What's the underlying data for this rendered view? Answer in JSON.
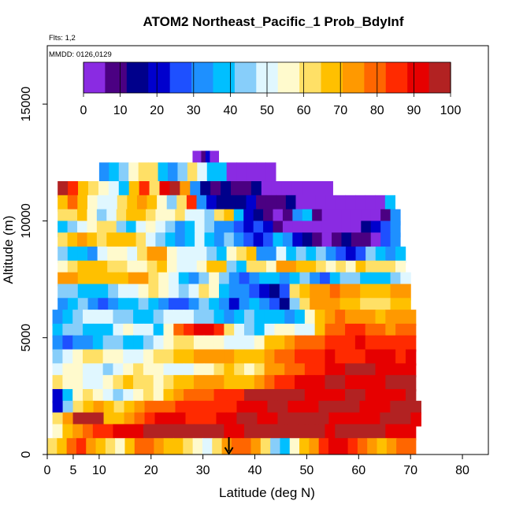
{
  "chart_data": {
    "type": "heatmap",
    "title": "ATOM2 Northeast_Pacific_1 Prob_BdyInf",
    "flights_label": "Flts: 1,2",
    "dates_label": "MMDD: 0126,0129",
    "xlabel": "Latitude (deg N)",
    "ylabel": "Altitude (m)",
    "xlim": [
      0,
      85
    ],
    "ylim": [
      0,
      17500
    ],
    "x_ticks": [
      0,
      5,
      10,
      20,
      30,
      40,
      50,
      60,
      70,
      80
    ],
    "y_ticks": [
      0,
      5000,
      10000,
      15000
    ],
    "colorbar": {
      "range": [
        0,
        100
      ],
      "ticks": [
        0,
        10,
        20,
        30,
        40,
        50,
        60,
        70,
        80,
        90,
        100
      ],
      "colors": [
        "#8a2be2",
        "#4b0082",
        "#00008b",
        "#0000cd",
        "#1e50ff",
        "#1e90ff",
        "#00bfff",
        "#87cefa",
        "#e0f7ff",
        "#fffacd",
        "#ffe066",
        "#ffc000",
        "#ff9900",
        "#ff6600",
        "#ff2a00",
        "#e60000",
        "#b22222"
      ]
    },
    "arrow_latitude": 35,
    "rows": [
      {
        "alt_min": 12400,
        "alt_max": 13000,
        "lat_min": 28,
        "lat_max": 33,
        "values": [
          2,
          2,
          10,
          18,
          5,
          3
        ]
      },
      {
        "alt_min": 11500,
        "alt_max": 12500,
        "lat_min": 10,
        "lat_max": 44,
        "values": [
          35,
          38,
          42,
          55,
          60,
          62,
          38,
          30,
          45,
          60,
          52,
          40,
          38,
          3,
          2,
          2,
          2,
          2
        ]
      },
      {
        "alt_min": 11000,
        "alt_max": 11700,
        "lat_min": 2,
        "lat_max": 55,
        "values": [
          95,
          85,
          70,
          60,
          55,
          48,
          40,
          70,
          85,
          60,
          90,
          95,
          75,
          30,
          15,
          10,
          12,
          10,
          8,
          15,
          5,
          3,
          2,
          2,
          2,
          2,
          2
        ]
      },
      {
        "alt_min": 10400,
        "alt_max": 11100,
        "lat_min": 2,
        "lat_max": 67,
        "values": [
          70,
          78,
          65,
          55,
          48,
          50,
          62,
          70,
          75,
          65,
          58,
          45,
          60,
          88,
          30,
          20,
          15,
          12,
          15,
          18,
          10,
          8,
          6,
          12,
          5,
          2,
          2,
          3,
          4,
          2,
          2,
          2,
          3,
          40
        ]
      },
      {
        "alt_min": 9800,
        "alt_max": 10500,
        "lat_min": 2,
        "lat_max": 68,
        "values": [
          60,
          62,
          70,
          58,
          45,
          52,
          60,
          65,
          70,
          60,
          55,
          58,
          62,
          50,
          48,
          45,
          60,
          70,
          40,
          20,
          15,
          8,
          5,
          10,
          30,
          40,
          8,
          2,
          2,
          2,
          2,
          5,
          3,
          8,
          30
        ]
      },
      {
        "alt_min": 9300,
        "alt_max": 10000,
        "lat_min": 2,
        "lat_max": 68,
        "values": [
          38,
          42,
          48,
          55,
          62,
          60,
          45,
          40,
          50,
          55,
          48,
          42,
          35,
          40,
          50,
          45,
          35,
          30,
          28,
          20,
          25,
          18,
          10,
          5,
          3,
          2,
          2,
          2,
          2,
          2,
          3,
          12,
          20,
          25,
          30
        ]
      },
      {
        "alt_min": 8800,
        "alt_max": 9500,
        "lat_min": 2,
        "lat_max": 68,
        "values": [
          62,
          70,
          72,
          68,
          64,
          66,
          70,
          68,
          60,
          48,
          42,
          38,
          35,
          40,
          50,
          38,
          30,
          42,
          35,
          25,
          20,
          28,
          40,
          35,
          22,
          12,
          8,
          5,
          8,
          15,
          10,
          6,
          5,
          25,
          30
        ]
      },
      {
        "alt_min": 8200,
        "alt_max": 8900,
        "lat_min": 2,
        "lat_max": 69,
        "values": [
          42,
          40,
          38,
          35,
          48,
          58,
          55,
          52,
          60,
          75,
          72,
          55,
          50,
          48,
          52,
          45,
          40,
          55,
          60,
          68,
          35,
          30,
          50,
          40,
          45,
          38,
          42,
          32,
          28,
          20,
          25,
          45,
          38,
          30,
          40
        ]
      },
      {
        "alt_min": 7700,
        "alt_max": 8300,
        "lat_min": 2,
        "lat_max": 69,
        "values": [
          58,
          62,
          66,
          70,
          68,
          64,
          60,
          58,
          55,
          60,
          65,
          58,
          50,
          48,
          55,
          70,
          68,
          45,
          40,
          62,
          60,
          58,
          72,
          75,
          70,
          66,
          62,
          55,
          60,
          58,
          65,
          64,
          62,
          60,
          55
        ]
      },
      {
        "alt_min": 7200,
        "alt_max": 7800,
        "lat_min": 2,
        "lat_max": 70,
        "values": [
          75,
          72,
          70,
          68,
          66,
          68,
          70,
          72,
          74,
          62,
          58,
          48,
          40,
          35,
          45,
          55,
          42,
          30,
          25,
          35,
          40,
          36,
          32,
          38,
          45,
          30,
          25,
          40,
          45,
          42,
          36,
          38,
          40,
          45,
          50
        ]
      },
      {
        "alt_min": 6600,
        "alt_max": 7300,
        "lat_min": 2,
        "lat_max": 70,
        "values": [
          45,
          42,
          40,
          38,
          36,
          42,
          48,
          52,
          58,
          62,
          56,
          50,
          45,
          52,
          60,
          55,
          40,
          35,
          30,
          25,
          20,
          15,
          25,
          60,
          70,
          74,
          76,
          78,
          74,
          72,
          70,
          68,
          70,
          72,
          75
        ]
      },
      {
        "alt_min": 6100,
        "alt_max": 6700,
        "lat_min": 2,
        "lat_max": 70,
        "values": [
          35,
          38,
          42,
          30,
          28,
          32,
          36,
          40,
          45,
          40,
          35,
          28,
          25,
          30,
          42,
          38,
          30,
          22,
          35,
          40,
          30,
          28,
          15,
          45,
          60,
          72,
          75,
          73,
          70,
          66,
          62,
          60,
          64,
          66,
          68
        ]
      },
      {
        "alt_min": 5500,
        "alt_max": 6200,
        "lat_min": 1,
        "lat_max": 71,
        "values": [
          35,
          40,
          45,
          50,
          52,
          48,
          45,
          42,
          40,
          38,
          44,
          48,
          52,
          50,
          46,
          42,
          38,
          35,
          40,
          44,
          40,
          38,
          36,
          34,
          40,
          55,
          70,
          75,
          78,
          76,
          74,
          72,
          70,
          72,
          74,
          75
        ]
      },
      {
        "alt_min": 5000,
        "alt_max": 5600,
        "lat_min": 1,
        "lat_max": 71,
        "values": [
          40,
          45,
          42,
          38,
          36,
          40,
          48,
          55,
          52,
          48,
          40,
          55,
          80,
          88,
          92,
          90,
          86,
          60,
          50,
          45,
          40,
          50,
          58,
          55,
          52,
          48,
          68,
          80,
          82,
          85,
          84,
          80,
          78,
          76,
          78,
          80
        ]
      },
      {
        "alt_min": 4400,
        "alt_max": 5100,
        "lat_min": 1,
        "lat_max": 71,
        "values": [
          30,
          28,
          32,
          35,
          38,
          42,
          45,
          40,
          38,
          42,
          48,
          55,
          62,
          60,
          58,
          56,
          54,
          52,
          50,
          48,
          58,
          66,
          70,
          75,
          78,
          80,
          82,
          84,
          86,
          88,
          90,
          88,
          86,
          84,
          85,
          86
        ]
      },
      {
        "alt_min": 3800,
        "alt_max": 4500,
        "lat_min": 1,
        "lat_max": 71,
        "values": [
          45,
          50,
          55,
          60,
          62,
          58,
          55,
          52,
          50,
          55,
          60,
          64,
          68,
          70,
          72,
          74,
          76,
          72,
          68,
          66,
          70,
          74,
          78,
          82,
          84,
          86,
          88,
          90,
          88,
          86,
          88,
          90,
          92,
          90,
          88,
          90
        ]
      },
      {
        "alt_min": 3300,
        "alt_max": 3900,
        "lat_min": 1,
        "lat_max": 71,
        "values": [
          50,
          55,
          58,
          52,
          48,
          46,
          50,
          55,
          60,
          58,
          55,
          50,
          48,
          52,
          56,
          58,
          62,
          66,
          60,
          58,
          62,
          72,
          76,
          80,
          82,
          85,
          88,
          92,
          94,
          95,
          96,
          95,
          94,
          92,
          90,
          92
        ]
      },
      {
        "alt_min": 2700,
        "alt_max": 3400,
        "lat_min": 1,
        "lat_max": 71,
        "values": [
          60,
          58,
          55,
          50,
          52,
          56,
          62,
          66,
          64,
          60,
          58,
          62,
          66,
          70,
          74,
          76,
          72,
          68,
          66,
          70,
          74,
          80,
          84,
          88,
          90,
          92,
          94,
          96,
          95,
          94,
          92,
          93,
          94,
          95,
          96,
          95
        ]
      },
      {
        "alt_min": 2200,
        "alt_max": 2800,
        "lat_min": 1,
        "lat_max": 71,
        "values": [
          18,
          40,
          55,
          62,
          58,
          48,
          44,
          50,
          56,
          60,
          58,
          66,
          72,
          78,
          80,
          82,
          84,
          86,
          88,
          96,
          98,
          98,
          97,
          96,
          95,
          94,
          93,
          92,
          94,
          96,
          95,
          94,
          93,
          92,
          94,
          95
        ]
      },
      {
        "alt_min": 1700,
        "alt_max": 2300,
        "lat_min": 1,
        "lat_max": 72,
        "values": [
          20,
          45,
          60,
          70,
          72,
          66,
          60,
          68,
          74,
          78,
          80,
          82,
          84,
          86,
          85,
          84,
          86,
          88,
          90,
          92,
          94,
          96,
          95,
          94,
          93,
          94,
          96,
          97,
          96,
          95,
          94,
          93,
          94,
          95,
          96,
          95
        ]
      },
      {
        "alt_min": 1200,
        "alt_max": 1800,
        "lat_min": 1,
        "lat_max": 72,
        "values": [
          60,
          75,
          96,
          98,
          97,
          70,
          65,
          72,
          80,
          86,
          90,
          92,
          90,
          88,
          86,
          88,
          92,
          94,
          96,
          95,
          94,
          92,
          95,
          96,
          97,
          96,
          95,
          94,
          92,
          90,
          92,
          94,
          95,
          96,
          95,
          94
        ]
      },
      {
        "alt_min": 600,
        "alt_max": 1300,
        "lat_min": 1,
        "lat_max": 71,
        "values": [
          55,
          65,
          75,
          80,
          85,
          88,
          90,
          92,
          94,
          95,
          96,
          97,
          98,
          98,
          97,
          96,
          95,
          94,
          93,
          95,
          96,
          97,
          98,
          98,
          97,
          96,
          95,
          94,
          95,
          96,
          97,
          96,
          95,
          94,
          93,
          94
        ]
      },
      {
        "alt_min": 0,
        "alt_max": 700,
        "lat_min": 0,
        "lat_max": 71,
        "values": [
          60,
          70,
          80,
          85,
          72,
          65,
          60,
          55,
          70,
          78,
          82,
          76,
          70,
          65,
          60,
          55,
          50,
          62,
          75,
          80,
          82,
          72,
          60,
          45,
          40,
          55,
          65,
          72,
          85,
          90,
          92,
          88,
          80,
          75,
          70,
          72,
          78,
          80
        ]
      }
    ]
  }
}
